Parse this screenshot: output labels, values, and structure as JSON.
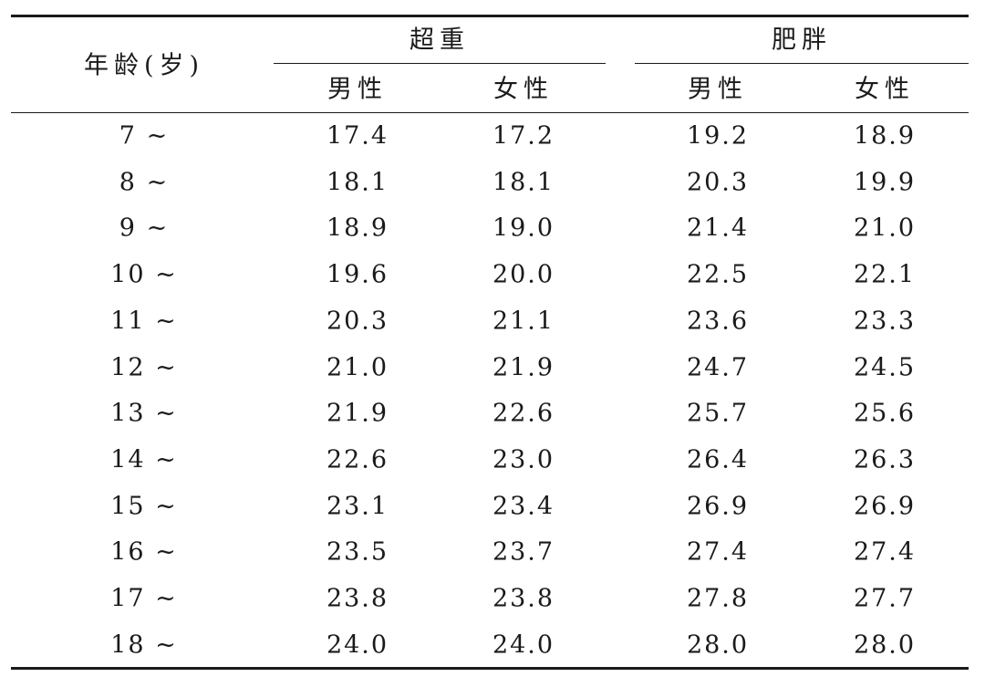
{
  "table": {
    "age_header": "年龄(岁)",
    "groups": [
      {
        "label": "超重",
        "sub": [
          "男性",
          "女性"
        ]
      },
      {
        "label": "肥胖",
        "sub": [
          "男性",
          "女性"
        ]
      }
    ],
    "rows": [
      {
        "age": "7 ~",
        "values": [
          "17.4",
          "17.2",
          "19.2",
          "18.9"
        ]
      },
      {
        "age": "8 ~",
        "values": [
          "18.1",
          "18.1",
          "20.3",
          "19.9"
        ]
      },
      {
        "age": "9 ~",
        "values": [
          "18.9",
          "19.0",
          "21.4",
          "21.0"
        ]
      },
      {
        "age": "10 ~",
        "values": [
          "19.6",
          "20.0",
          "22.5",
          "22.1"
        ]
      },
      {
        "age": "11 ~",
        "values": [
          "20.3",
          "21.1",
          "23.6",
          "23.3"
        ]
      },
      {
        "age": "12 ~",
        "values": [
          "21.0",
          "21.9",
          "24.7",
          "24.5"
        ]
      },
      {
        "age": "13 ~",
        "values": [
          "21.9",
          "22.6",
          "25.7",
          "25.6"
        ]
      },
      {
        "age": "14 ~",
        "values": [
          "22.6",
          "23.0",
          "26.4",
          "26.3"
        ]
      },
      {
        "age": "15 ~",
        "values": [
          "23.1",
          "23.4",
          "26.9",
          "26.9"
        ]
      },
      {
        "age": "16 ~",
        "values": [
          "23.5",
          "23.7",
          "27.4",
          "27.4"
        ]
      },
      {
        "age": "17 ~",
        "values": [
          "23.8",
          "23.8",
          "27.8",
          "27.7"
        ]
      },
      {
        "age": "18 ~",
        "values": [
          "24.0",
          "24.0",
          "28.0",
          "28.0"
        ]
      }
    ]
  },
  "chart_data": {
    "type": "table",
    "columns": [
      "年龄(岁)",
      "超重 男性",
      "超重 女性",
      "肥胖 男性",
      "肥胖 女性"
    ],
    "categories": [
      "7 ~",
      "8 ~",
      "9 ~",
      "10 ~",
      "11 ~",
      "12 ~",
      "13 ~",
      "14 ~",
      "15 ~",
      "16 ~",
      "17 ~",
      "18 ~"
    ],
    "series": [
      {
        "name": "超重 男性",
        "values": [
          17.4,
          18.1,
          18.9,
          19.6,
          20.3,
          21.0,
          21.9,
          22.6,
          23.1,
          23.5,
          23.8,
          24.0
        ]
      },
      {
        "name": "超重 女性",
        "values": [
          17.2,
          18.1,
          19.0,
          20.0,
          21.1,
          21.9,
          22.6,
          23.0,
          23.4,
          23.7,
          23.8,
          24.0
        ]
      },
      {
        "name": "肥胖 男性",
        "values": [
          19.2,
          20.3,
          21.4,
          22.5,
          23.6,
          24.7,
          25.7,
          26.4,
          26.9,
          27.4,
          27.8,
          28.0
        ]
      },
      {
        "name": "肥胖 女性",
        "values": [
          18.9,
          19.9,
          21.0,
          22.1,
          23.3,
          24.5,
          25.6,
          26.3,
          26.9,
          27.4,
          27.7,
          28.0
        ]
      }
    ]
  }
}
